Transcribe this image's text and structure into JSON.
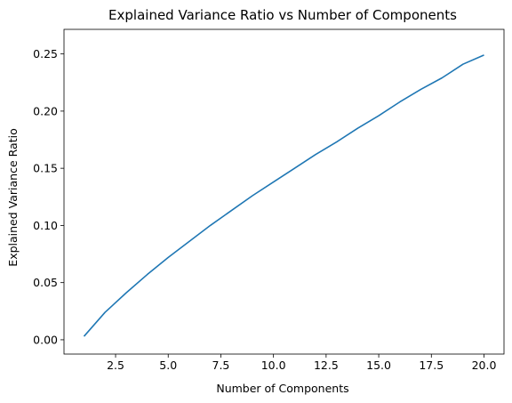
{
  "chart_data": {
    "type": "line",
    "title": "Explained Variance Ratio vs Number of Components",
    "xlabel": "Number of Components",
    "ylabel": "Explained Variance Ratio",
    "xlim": [
      0.05,
      20.95
    ],
    "ylim": [
      -0.0125,
      0.2715
    ],
    "grid": false,
    "x_ticks": [
      2.5,
      5.0,
      7.5,
      10.0,
      12.5,
      15.0,
      17.5,
      20.0
    ],
    "x_tick_labels": [
      "2.5",
      "5.0",
      "7.5",
      "10.0",
      "12.5",
      "15.0",
      "17.5",
      "20.0"
    ],
    "y_ticks": [
      0.0,
      0.05,
      0.1,
      0.15,
      0.2,
      0.25
    ],
    "y_tick_labels": [
      "0.00",
      "0.05",
      "0.10",
      "0.15",
      "0.20",
      "0.25"
    ],
    "series": [
      {
        "color": "#1f77b4",
        "x": [
          1,
          2,
          3,
          4,
          5,
          6,
          7,
          8,
          9,
          10,
          11,
          12,
          13,
          14,
          15,
          16,
          17,
          18,
          19,
          20
        ],
        "values": [
          0.003,
          0.024,
          0.041,
          0.057,
          0.072,
          0.086,
          0.1,
          0.113,
          0.126,
          0.138,
          0.15,
          0.162,
          0.173,
          0.185,
          0.196,
          0.208,
          0.219,
          0.229,
          0.241,
          0.249
        ]
      }
    ]
  }
}
